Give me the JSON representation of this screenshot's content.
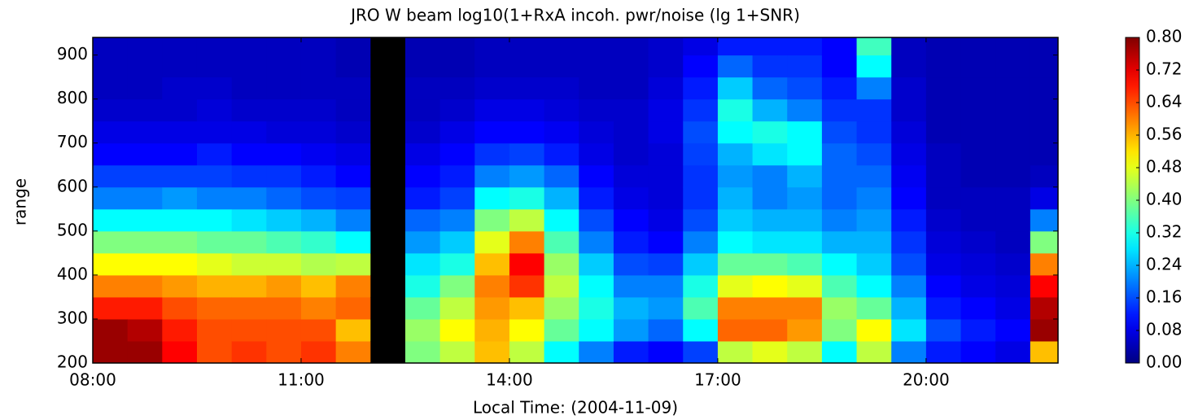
{
  "chart_data": {
    "type": "heatmap",
    "title": "JRO W beam log10(1+RxA incoh. pwr/noise (lg 1+SNR)",
    "xlabel": "Local Time: (2004-11-09)",
    "ylabel": "range",
    "xlim": [
      8,
      21.9
    ],
    "ylim": [
      200,
      940
    ],
    "xticks": [
      {
        "value": 8,
        "label": "08:00"
      },
      {
        "value": 11,
        "label": "11:00"
      },
      {
        "value": 14,
        "label": "14:00"
      },
      {
        "value": 17,
        "label": "17:00"
      },
      {
        "value": 20,
        "label": "20:00"
      }
    ],
    "yticks": [
      200,
      300,
      400,
      500,
      600,
      700,
      800,
      900
    ],
    "xbins": [
      8,
      8.5,
      9,
      9.5,
      10,
      10.5,
      11,
      11.5,
      12,
      12.5,
      13,
      13.5,
      14,
      14.5,
      15,
      15.5,
      16,
      16.5,
      17,
      17.5,
      18,
      18.5,
      19,
      19.5,
      20,
      20.5,
      21,
      21.5,
      21.9
    ],
    "ybins": [
      200,
      250,
      300,
      350,
      400,
      450,
      500,
      550,
      600,
      650,
      700,
      750,
      800,
      850,
      900,
      940
    ],
    "clim": [
      0,
      0.8
    ],
    "cticks": [
      {
        "value": 0,
        "label": "0.00"
      },
      {
        "value": 0.08,
        "label": "0.08"
      },
      {
        "value": 0.16,
        "label": "0.16"
      },
      {
        "value": 0.24,
        "label": "0.24"
      },
      {
        "value": 0.32,
        "label": "0.32"
      },
      {
        "value": 0.4,
        "label": "0.40"
      },
      {
        "value": 0.48,
        "label": "0.48"
      },
      {
        "value": 0.56,
        "label": "0.56"
      },
      {
        "value": 0.64,
        "label": "0.64"
      },
      {
        "value": 0.72,
        "label": "0.72"
      },
      {
        "value": 0.8,
        "label": "0.80"
      }
    ],
    "colormap": "jet",
    "values": [
      [
        0.78,
        0.78,
        0.68,
        0.6,
        0.5,
        0.4,
        0.3,
        0.2,
        0.15,
        0.1,
        0.08,
        0.06,
        0.05,
        0.05,
        0.05
      ],
      [
        0.78,
        0.76,
        0.68,
        0.6,
        0.5,
        0.4,
        0.3,
        0.2,
        0.15,
        0.1,
        0.08,
        0.06,
        0.05,
        0.05,
        0.05
      ],
      [
        0.7,
        0.68,
        0.64,
        0.58,
        0.5,
        0.4,
        0.3,
        0.22,
        0.15,
        0.1,
        0.08,
        0.06,
        0.06,
        0.05,
        0.05
      ],
      [
        0.64,
        0.64,
        0.62,
        0.56,
        0.48,
        0.38,
        0.3,
        0.2,
        0.15,
        0.12,
        0.08,
        0.07,
        0.06,
        0.05,
        0.05
      ],
      [
        0.66,
        0.64,
        0.62,
        0.56,
        0.46,
        0.38,
        0.28,
        0.2,
        0.14,
        0.1,
        0.08,
        0.06,
        0.05,
        0.05,
        0.05
      ],
      [
        0.64,
        0.64,
        0.62,
        0.58,
        0.46,
        0.36,
        0.26,
        0.18,
        0.14,
        0.1,
        0.07,
        0.06,
        0.05,
        0.05,
        0.05
      ],
      [
        0.66,
        0.64,
        0.6,
        0.55,
        0.44,
        0.34,
        0.24,
        0.16,
        0.12,
        0.09,
        0.07,
        0.06,
        0.05,
        0.05,
        0.05
      ],
      [
        0.6,
        0.55,
        0.62,
        0.6,
        0.45,
        0.3,
        0.2,
        0.15,
        0.1,
        0.08,
        0.06,
        0.05,
        0.05,
        0.04,
        0.04
      ],
      [
        null,
        null,
        null,
        null,
        null,
        null,
        null,
        null,
        null,
        null,
        null,
        null,
        null,
        null,
        null
      ],
      [
        0.4,
        0.42,
        0.38,
        0.32,
        0.28,
        0.22,
        0.18,
        0.12,
        0.1,
        0.08,
        0.06,
        0.05,
        0.05,
        0.04,
        0.04
      ],
      [
        0.45,
        0.5,
        0.45,
        0.4,
        0.32,
        0.26,
        0.2,
        0.15,
        0.12,
        0.1,
        0.08,
        0.06,
        0.05,
        0.04,
        0.04
      ],
      [
        0.55,
        0.56,
        0.58,
        0.6,
        0.55,
        0.48,
        0.4,
        0.3,
        0.2,
        0.14,
        0.1,
        0.08,
        0.06,
        0.05,
        0.05
      ],
      [
        0.45,
        0.5,
        0.55,
        0.66,
        0.7,
        0.6,
        0.45,
        0.32,
        0.22,
        0.15,
        0.1,
        0.08,
        0.06,
        0.05,
        0.05
      ],
      [
        0.3,
        0.38,
        0.42,
        0.45,
        0.42,
        0.36,
        0.3,
        0.24,
        0.18,
        0.12,
        0.09,
        0.07,
        0.06,
        0.05,
        0.05
      ],
      [
        0.2,
        0.3,
        0.32,
        0.3,
        0.26,
        0.2,
        0.16,
        0.12,
        0.1,
        0.08,
        0.07,
        0.06,
        0.05,
        0.05,
        0.05
      ],
      [
        0.12,
        0.22,
        0.24,
        0.2,
        0.16,
        0.12,
        0.1,
        0.08,
        0.07,
        0.06,
        0.06,
        0.06,
        0.05,
        0.05,
        0.05
      ],
      [
        0.1,
        0.18,
        0.22,
        0.2,
        0.15,
        0.1,
        0.08,
        0.07,
        0.07,
        0.07,
        0.08,
        0.08,
        0.07,
        0.06,
        0.06
      ],
      [
        0.15,
        0.3,
        0.36,
        0.32,
        0.26,
        0.2,
        0.16,
        0.14,
        0.14,
        0.15,
        0.16,
        0.14,
        0.12,
        0.1,
        0.08
      ],
      [
        0.45,
        0.62,
        0.6,
        0.48,
        0.38,
        0.3,
        0.26,
        0.24,
        0.22,
        0.24,
        0.3,
        0.32,
        0.26,
        0.18,
        0.12
      ],
      [
        0.48,
        0.62,
        0.6,
        0.5,
        0.38,
        0.28,
        0.24,
        0.2,
        0.2,
        0.28,
        0.32,
        0.24,
        0.18,
        0.14,
        0.12
      ],
      [
        0.45,
        0.58,
        0.6,
        0.48,
        0.36,
        0.28,
        0.24,
        0.22,
        0.24,
        0.3,
        0.3,
        0.2,
        0.16,
        0.14,
        0.12
      ],
      [
        0.3,
        0.4,
        0.42,
        0.36,
        0.3,
        0.24,
        0.2,
        0.18,
        0.18,
        0.18,
        0.16,
        0.14,
        0.12,
        0.1,
        0.1
      ],
      [
        0.45,
        0.5,
        0.38,
        0.3,
        0.26,
        0.24,
        0.22,
        0.2,
        0.18,
        0.16,
        0.14,
        0.14,
        0.2,
        0.3,
        0.35
      ],
      [
        0.2,
        0.28,
        0.24,
        0.2,
        0.16,
        0.14,
        0.12,
        0.1,
        0.09,
        0.08,
        0.07,
        0.06,
        0.06,
        0.05,
        0.05
      ],
      [
        0.12,
        0.16,
        0.12,
        0.1,
        0.08,
        0.07,
        0.06,
        0.05,
        0.05,
        0.05,
        0.04,
        0.04,
        0.04,
        0.04,
        0.04
      ],
      [
        0.1,
        0.12,
        0.1,
        0.08,
        0.07,
        0.06,
        0.05,
        0.05,
        0.04,
        0.04,
        0.04,
        0.04,
        0.04,
        0.04,
        0.04
      ],
      [
        0.08,
        0.1,
        0.08,
        0.07,
        0.06,
        0.05,
        0.05,
        0.05,
        0.04,
        0.04,
        0.04,
        0.04,
        0.04,
        0.04,
        0.04
      ],
      [
        0.55,
        0.78,
        0.76,
        0.7,
        0.6,
        0.4,
        0.2,
        0.08,
        0.05,
        0.04,
        0.04,
        0.04,
        0.04,
        0.04,
        0.04
      ]
    ]
  }
}
